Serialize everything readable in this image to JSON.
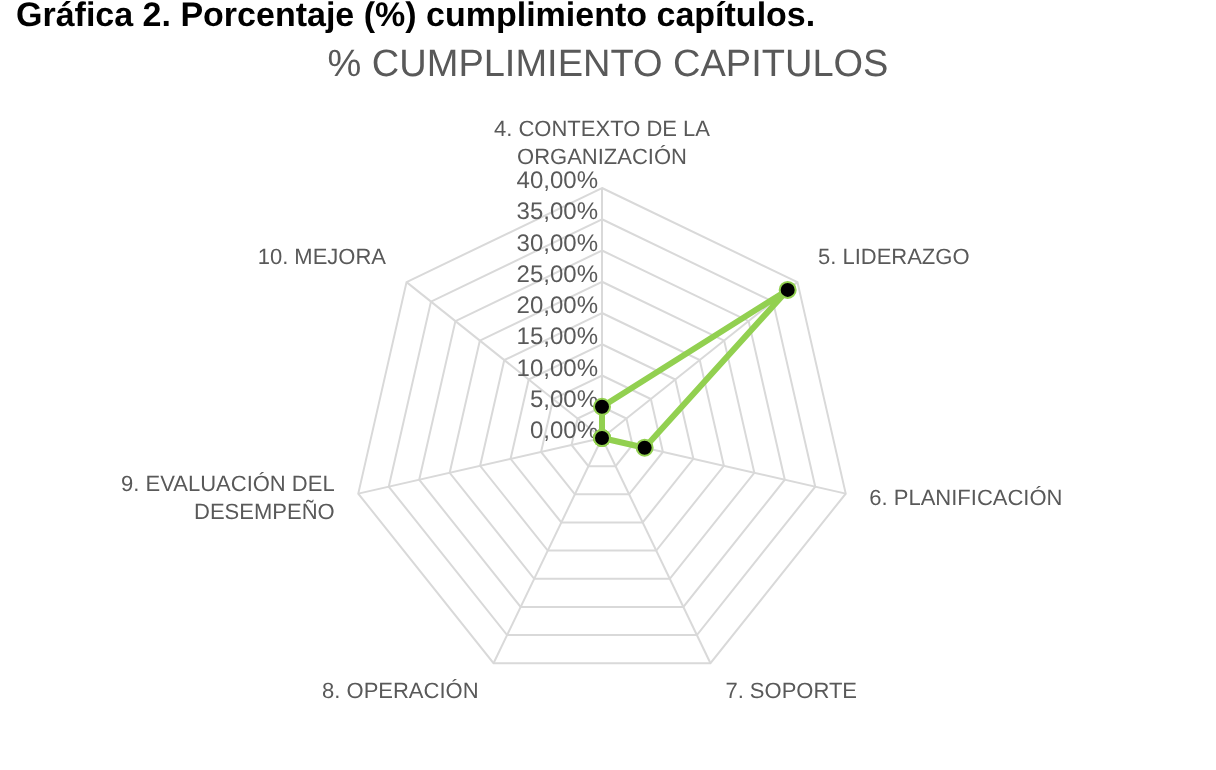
{
  "chart_data": {
    "type": "radar",
    "title": "% CUMPLIMIENTO CAPITULOS",
    "annotations": [
      "Gráfica 2. Porcentaje (%) cumplimiento capítulos."
    ],
    "categories": [
      "4. CONTEXTO DE LA ORGANIZACIÓN",
      "5. LIDERAZGO",
      "6. PLANIFICACIÓN",
      "7. SOPORTE",
      "8. OPERACIÓN",
      "9. EVALUACIÓN DEL DESEMPEÑO",
      "10. MEJORA"
    ],
    "series": [
      {
        "color": "#92d050",
        "values": [
          5,
          38,
          7,
          0,
          0,
          0,
          0
        ]
      }
    ],
    "ylim": [
      0,
      40
    ],
    "yticks": [
      {
        "value": 0,
        "label": "0,00%"
      },
      {
        "value": 5,
        "label": "5,00%"
      },
      {
        "value": 10,
        "label": "10,00%"
      },
      {
        "value": 15,
        "label": "15,00%"
      },
      {
        "value": 20,
        "label": "20,00%"
      },
      {
        "value": 25,
        "label": "25,00%"
      },
      {
        "value": 30,
        "label": "30,00%"
      },
      {
        "value": 35,
        "label": "35,00%"
      },
      {
        "value": 40,
        "label": "40,00%"
      }
    ],
    "grid": true,
    "marker": "circle",
    "legend": false
  }
}
